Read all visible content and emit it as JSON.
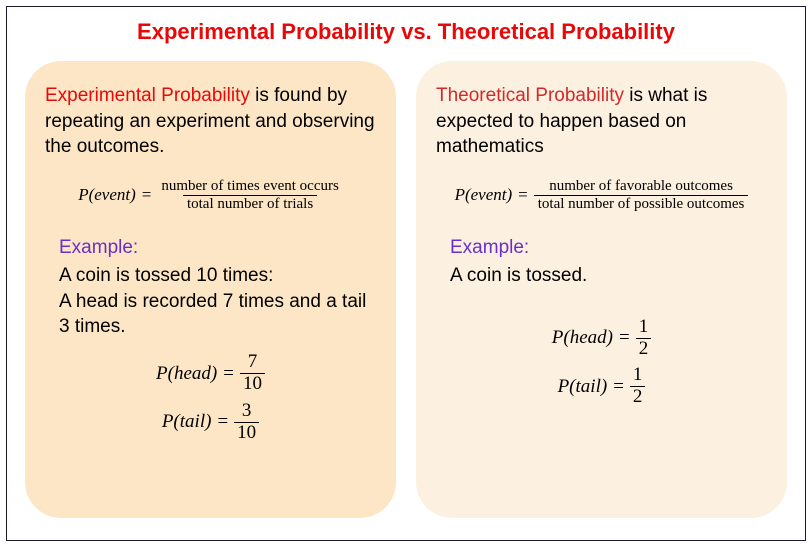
{
  "colors": {
    "title_accent": "#e80808",
    "theoretical_accent": "#d22a2a",
    "example_label": "#6b2fc9",
    "card_left_bg": "#fce6c6",
    "card_right_bg": "#fcf0e0",
    "border": "#1a1a2e",
    "text": "#000000"
  },
  "title": "Experimental Probability vs. Theoretical Probability",
  "left": {
    "heading": "Experimental Probability",
    "heading_color": "#e80808",
    "definition": " is found by repeating an experiment and observing the outcomes.",
    "formula": {
      "lhs": "P(event)",
      "numerator": "number of times event occurs",
      "denominator": "total number of trials"
    },
    "example_label": "Example:",
    "example_text": "A coin is tossed 10 times:\nA head is recorded 7 times and a tail 3 times.",
    "results": [
      {
        "lhs": "P(head)",
        "num": "7",
        "den": "10"
      },
      {
        "lhs": "P(tail)",
        "num": "3",
        "den": "10"
      }
    ]
  },
  "right": {
    "heading": "Theoretical Probability",
    "heading_color": "#d22a2a",
    "definition": " is what is expected to happen based on mathematics",
    "formula": {
      "lhs": "P(event)",
      "numerator": "number of favorable outcomes",
      "denominator": "total number of possible outcomes"
    },
    "example_label": "Example:",
    "example_text": "A coin is tossed.",
    "results": [
      {
        "lhs": "P(head)",
        "num": "1",
        "den": "2"
      },
      {
        "lhs": "P(tail)",
        "num": "1",
        "den": "2"
      }
    ]
  }
}
